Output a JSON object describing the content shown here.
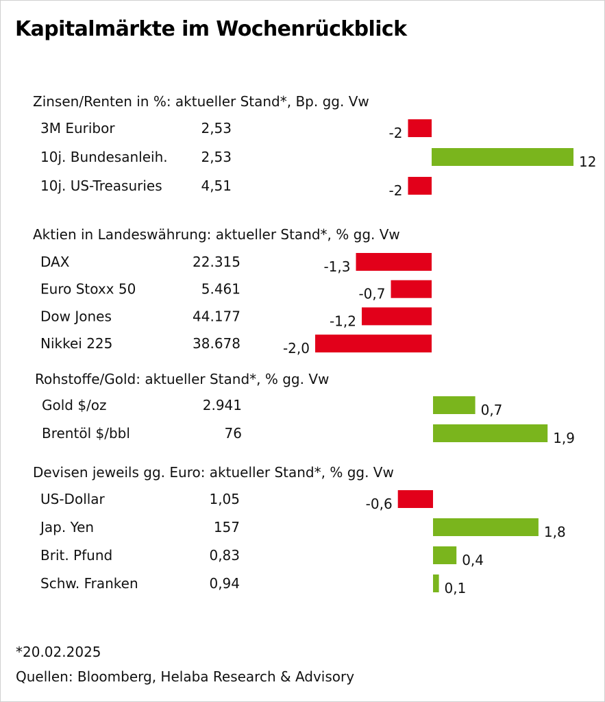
{
  "title": "Kapitalmärkte im Wochenrückblick",
  "colors": {
    "positive": "#7ab51d",
    "negative": "#e2001a"
  },
  "chart_data": {
    "type": "bar",
    "orientation": "horizontal",
    "sections": [
      {
        "header": "Zinsen/Renten in %: aktueller Stand*, Bp. gg. Vw",
        "rows": [
          {
            "label": "3M Euribor",
            "level": "2,53",
            "change": -2,
            "change_label": "-2"
          },
          {
            "label": "10j. Bundesanleih.",
            "level": "2,53",
            "change": 12,
            "change_label": "12"
          },
          {
            "label": "10j. US-Treasuries",
            "level": "4,51",
            "change": -2,
            "change_label": "-2"
          }
        ]
      },
      {
        "header": "Aktien in Landeswährung: aktueller Stand*, % gg. Vw",
        "rows": [
          {
            "label": "DAX",
            "level": "22.315",
            "change": -1.3,
            "change_label": "-1,3"
          },
          {
            "label": "Euro Stoxx 50",
            "level": "5.461",
            "change": -0.7,
            "change_label": "-0,7"
          },
          {
            "label": "Dow Jones",
            "level": "44.177",
            "change": -1.2,
            "change_label": "-1,2"
          },
          {
            "label": "Nikkei 225",
            "level": "38.678",
            "change": -2.0,
            "change_label": "-2,0"
          }
        ]
      },
      {
        "header": "Rohstoffe/Gold: aktueller Stand*, % gg. Vw",
        "rows": [
          {
            "label": "Gold $/oz",
            "level": "2.941",
            "change": 0.7,
            "change_label": "0,7"
          },
          {
            "label": "Brentöl $/bbl",
            "level": "76",
            "change": 1.9,
            "change_label": "1,9"
          }
        ]
      },
      {
        "header": "Devisen jeweils gg. Euro: aktueller Stand*, % gg. Vw",
        "rows": [
          {
            "label": "US-Dollar",
            "level": "1,05",
            "change": -0.6,
            "change_label": "-0,6"
          },
          {
            "label": "Jap. Yen",
            "level": "157",
            "change": 1.8,
            "change_label": "1,8"
          },
          {
            "label": "Brit. Pfund",
            "level": "0,83",
            "change": 0.4,
            "change_label": "0,4"
          },
          {
            "label": "Schw. Franken",
            "level": "0,94",
            "change": 0.1,
            "change_label": "0,1"
          }
        ]
      }
    ]
  },
  "footnote": {
    "date": "*20.02.2025",
    "sources": "Quellen: Bloomberg, Helaba Research & Advisory"
  }
}
